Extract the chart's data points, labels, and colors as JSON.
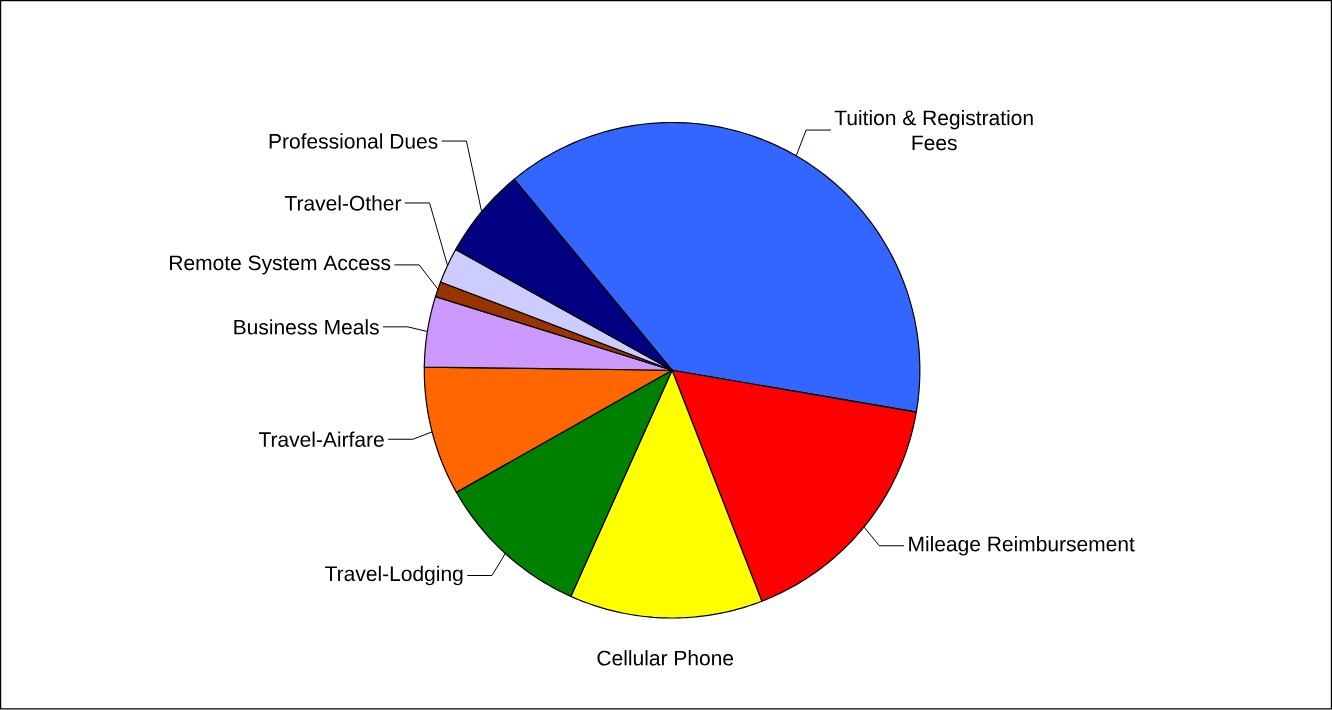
{
  "chart_data": {
    "type": "pie",
    "categories": [
      "Tuition & Registration Fees",
      "Mileage Reimbursement",
      "Cellular Phone",
      "Travel-Lodging",
      "Travel-Airfare",
      "Business Meals",
      "Remote System Access",
      "Travel-Other",
      "Professional Dues"
    ],
    "values": [
      38.7,
      16.4,
      12.6,
      10.1,
      8.4,
      4.6,
      1.0,
      2.3,
      5.9
    ],
    "colors": [
      "#3366ff",
      "#ff0000",
      "#ffff00",
      "#008000",
      "#ff6600",
      "#cc99ff",
      "#993300",
      "#ccccff",
      "#000080"
    ]
  }
}
